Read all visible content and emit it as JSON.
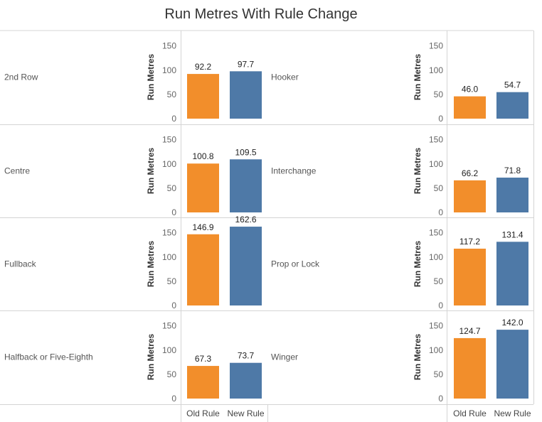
{
  "title": "Run Metres With Rule Change",
  "chart_data": {
    "type": "bar",
    "title": "Run Metres With Rule Change",
    "ylabel": "Run Metres",
    "ylim": [
      0,
      170
    ],
    "yticks": [
      0,
      50,
      100,
      150
    ],
    "categories": [
      "Old Rule",
      "New Rule"
    ],
    "colors": {
      "Old Rule": "#f28e2b",
      "New Rule": "#4e79a7"
    },
    "panels": [
      {
        "position": "2nd Row",
        "values": [
          92.2,
          97.7
        ]
      },
      {
        "position": "Hooker",
        "values": [
          46.0,
          54.7
        ]
      },
      {
        "position": "Centre",
        "values": [
          100.8,
          109.5
        ]
      },
      {
        "position": "Interchange",
        "values": [
          66.2,
          71.8
        ]
      },
      {
        "position": "Fullback",
        "values": [
          146.9,
          162.6
        ]
      },
      {
        "position": "Prop or Lock",
        "values": [
          117.2,
          131.4
        ]
      },
      {
        "position": "Halfback or Five-Eighth",
        "values": [
          67.3,
          73.7
        ]
      },
      {
        "position": "Winger",
        "values": [
          124.7,
          142.0
        ]
      }
    ],
    "grid": false,
    "legend": "none"
  }
}
